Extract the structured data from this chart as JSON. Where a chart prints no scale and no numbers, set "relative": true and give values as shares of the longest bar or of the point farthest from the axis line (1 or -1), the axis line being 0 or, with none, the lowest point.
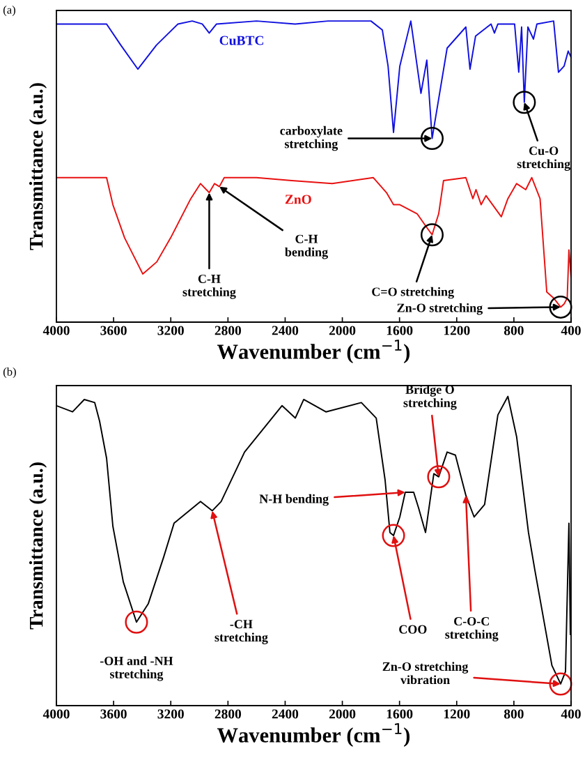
{
  "chart_data": [
    {
      "type": "line",
      "relative": true,
      "xlabel": "Wavenumber (cm$^{−1}$)",
      "ylabel": "Transmittance (a.u.)",
      "xlim": [
        4000,
        400
      ],
      "xticks": [
        4000,
        3600,
        3200,
        2800,
        2400,
        2000,
        1600,
        1200,
        800,
        400
      ],
      "legend": false,
      "grid": false,
      "series": [
        {
          "name": "CuBTC",
          "color": "#1010e0",
          "x": [
            4000,
            3700,
            3649,
            3550,
            3430,
            3300,
            3150,
            3050,
            2980,
            2931,
            2880,
            2600,
            2330,
            2100,
            1800,
            1720,
            1680,
            1642,
            1598,
            1521,
            1450,
            1409,
            1372,
            1267,
            1136,
            1107,
            1068,
            960,
            936,
            912,
            795,
            766,
            746,
            727,
            702,
            663,
            639,
            522,
            488,
            449,
            420,
            400
          ],
          "values": [
            0.99,
            0.99,
            0.99,
            0.92,
            0.84,
            0.92,
            0.99,
            1.0,
            0.99,
            0.96,
            0.99,
            1.0,
            0.99,
            1.0,
            1.0,
            0.97,
            0.85,
            0.63,
            0.85,
            1.0,
            0.76,
            0.87,
            0.61,
            0.91,
            0.98,
            0.84,
            0.95,
            0.99,
            0.96,
            0.99,
            0.99,
            0.83,
            0.98,
            0.73,
            0.98,
            0.94,
            0.99,
            1.0,
            0.83,
            0.85,
            0.9,
            0.88
          ]
        },
        {
          "name": "ZnO",
          "color": "#e81010",
          "x": [
            4000,
            3649,
            3605,
            3523,
            3396,
            3298,
            3201,
            3060,
            2992,
            2931,
            2894,
            2860,
            2826,
            2600,
            2354,
            2071,
            1784,
            1691,
            1642,
            1598,
            1477,
            1418,
            1372,
            1326,
            1292,
            1136,
            1087,
            1065,
            1029,
            995,
            888,
            842,
            781,
            717,
            675,
            617,
            570,
            522,
            473,
            449,
            427,
            415,
            400
          ],
          "values": [
            0.48,
            0.48,
            0.39,
            0.28,
            0.16,
            0.2,
            0.28,
            0.41,
            0.46,
            0.43,
            0.46,
            0.45,
            0.48,
            0.48,
            0.47,
            0.46,
            0.48,
            0.43,
            0.39,
            0.39,
            0.36,
            0.32,
            0.29,
            0.36,
            0.47,
            0.48,
            0.41,
            0.44,
            0.39,
            0.42,
            0.35,
            0.41,
            0.46,
            0.44,
            0.48,
            0.41,
            0.1,
            0.08,
            0.05,
            0.06,
            0.08,
            0.24,
            0.15
          ]
        }
      ],
      "annotations": [
        "(a)",
        {
          "text": "carboxylate\nstretching",
          "x": 1372,
          "y": 0.61
        },
        {
          "text": "Cu-O\nstretching",
          "x": 727,
          "y": 0.73
        },
        {
          "text": "C-H\nstretching",
          "x": 2931,
          "y": 0.43
        },
        {
          "text": "C-H\nbending",
          "x": 2860,
          "y": 0.45
        },
        {
          "text": "C=O stretching",
          "x": 1372,
          "y": 0.29
        },
        {
          "text": "Zn-O stretching",
          "x": 473,
          "y": 0.05
        }
      ]
    },
    {
      "type": "line",
      "relative": true,
      "xlabel": "Wavenumber (cm$^{−1}$)",
      "ylabel": "Transmittance (a.u.)",
      "xlim": [
        4000,
        400
      ],
      "xticks": [
        4000,
        3600,
        3200,
        2800,
        2400,
        2000,
        1600,
        1200,
        800,
        400
      ],
      "legend": false,
      "grid": false,
      "series": [
        {
          "color": "#000000",
          "x": [
            4000,
            3887,
            3805,
            3732,
            3698,
            3649,
            3605,
            3532,
            3440,
            3357,
            3250,
            3177,
            2992,
            2910,
            2848,
            2684,
            2422,
            2329,
            2270,
            2115,
            1867,
            1763,
            1701,
            1667,
            1642,
            1598,
            1560,
            1501,
            1467,
            1418,
            1360,
            1326,
            1267,
            1209,
            1136,
            1078,
            1005,
            912,
            842,
            781,
            698,
            654,
            534,
            473,
            439,
            415,
            405,
            400
          ],
          "values": [
            0.97,
            0.95,
            0.99,
            0.98,
            0.92,
            0.8,
            0.58,
            0.4,
            0.27,
            0.33,
            0.48,
            0.59,
            0.66,
            0.63,
            0.66,
            0.82,
            0.97,
            0.93,
            0.99,
            0.95,
            0.98,
            0.93,
            0.73,
            0.56,
            0.55,
            0.61,
            0.69,
            0.69,
            0.64,
            0.56,
            0.75,
            0.74,
            0.82,
            0.81,
            0.68,
            0.61,
            0.65,
            0.94,
            1.0,
            0.87,
            0.56,
            0.44,
            0.13,
            0.07,
            0.11,
            0.59,
            0.23,
            0.29
          ]
        }
      ],
      "annotations": [
        "(b)",
        {
          "text": "-OH and -NH\nstretching",
          "x": 3440,
          "y": 0.27
        },
        {
          "text": "-CH\nstretching",
          "x": 2910,
          "y": 0.63
        },
        {
          "text": "N-H bending",
          "x": 1560,
          "y": 0.69
        },
        {
          "text": "COO",
          "x": 1642,
          "y": 0.55
        },
        {
          "text": "Bridge O\nstretching",
          "x": 1326,
          "y": 0.74
        },
        {
          "text": "C-O-C\nstretching",
          "x": 1136,
          "y": 0.68
        },
        {
          "text": "Zn-O stretching\nvibration",
          "x": 473,
          "y": 0.07
        }
      ]
    }
  ]
}
